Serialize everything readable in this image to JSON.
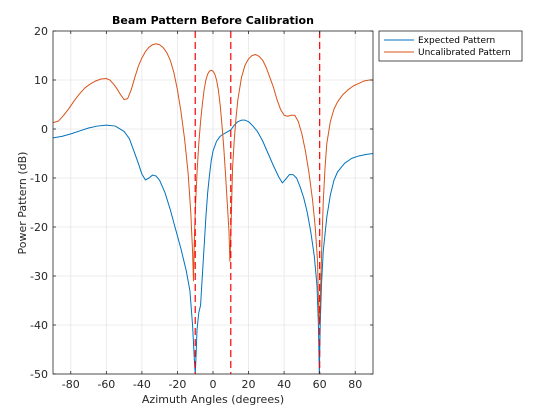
{
  "chart_data": {
    "type": "line",
    "title": "Beam Pattern Before Calibration",
    "xlabel": "Azimuth Angles (degrees)",
    "ylabel": "Power Pattern (dB)",
    "xlim": [
      -90,
      90
    ],
    "ylim": [
      -50,
      20
    ],
    "xticks": [
      -80,
      -60,
      -40,
      -20,
      0,
      20,
      40,
      60,
      80
    ],
    "yticks": [
      20,
      10,
      0,
      -10,
      -20,
      -30,
      -40,
      -50
    ],
    "grid": true,
    "legend_position": "outside-top-right",
    "series": [
      {
        "name": "Expected Pattern",
        "color": "#0072BD",
        "points": [
          [
            -90,
            -1.8
          ],
          [
            -85,
            -1.5
          ],
          [
            -80,
            -1.0
          ],
          [
            -75,
            -0.4
          ],
          [
            -70,
            0.2
          ],
          [
            -65,
            0.6
          ],
          [
            -60,
            0.8
          ],
          [
            -55,
            0.6
          ],
          [
            -50,
            -0.5
          ],
          [
            -47,
            -2.0
          ],
          [
            -45,
            -4.0
          ],
          [
            -42,
            -7.0
          ],
          [
            -40,
            -9.2
          ],
          [
            -38,
            -10.4
          ],
          [
            -36,
            -10.0
          ],
          [
            -34,
            -9.4
          ],
          [
            -32,
            -9.6
          ],
          [
            -30,
            -10.5
          ],
          [
            -27,
            -13.0
          ],
          [
            -24,
            -16.5
          ],
          [
            -21,
            -20.5
          ],
          [
            -18,
            -24.5
          ],
          [
            -15,
            -29.0
          ],
          [
            -13,
            -33.0
          ],
          [
            -11.5,
            -40.0
          ],
          [
            -10.5,
            -47.0
          ],
          [
            -10,
            -50.0
          ],
          [
            -9.5,
            -46.0
          ],
          [
            -9,
            -41.0
          ],
          [
            -8,
            -37.5
          ],
          [
            -7,
            -36.0
          ],
          [
            -6,
            -30.0
          ],
          [
            -5,
            -24.0
          ],
          [
            -4,
            -18.0
          ],
          [
            -3,
            -13.0
          ],
          [
            -2,
            -9.5
          ],
          [
            -1,
            -6.5
          ],
          [
            0,
            -4.5
          ],
          [
            2,
            -2.5
          ],
          [
            4,
            -1.5
          ],
          [
            6,
            -1.0
          ],
          [
            8,
            -0.6
          ],
          [
            10,
            -0.2
          ],
          [
            12,
            0.8
          ],
          [
            14,
            1.5
          ],
          [
            16,
            1.8
          ],
          [
            18,
            1.8
          ],
          [
            20,
            1.5
          ],
          [
            22,
            0.8
          ],
          [
            25,
            -0.5
          ],
          [
            28,
            -2.5
          ],
          [
            31,
            -5.0
          ],
          [
            34,
            -7.5
          ],
          [
            37,
            -9.8
          ],
          [
            39,
            -11.0
          ],
          [
            41,
            -10.2
          ],
          [
            43,
            -9.3
          ],
          [
            45,
            -9.3
          ],
          [
            47,
            -10.0
          ],
          [
            49,
            -11.8
          ],
          [
            51,
            -14.0
          ],
          [
            53,
            -17.0
          ],
          [
            55,
            -21.0
          ],
          [
            57,
            -26.0
          ],
          [
            58.5,
            -32.0
          ],
          [
            59.3,
            -40.0
          ],
          [
            59.8,
            -50.0
          ],
          [
            60.3,
            -40.0
          ],
          [
            61,
            -32.0
          ],
          [
            62,
            -25.0
          ],
          [
            64,
            -18.0
          ],
          [
            66,
            -13.5
          ],
          [
            68,
            -10.5
          ],
          [
            70,
            -8.8
          ],
          [
            74,
            -7.0
          ],
          [
            78,
            -6.0
          ],
          [
            82,
            -5.5
          ],
          [
            86,
            -5.2
          ],
          [
            90,
            -5.0
          ]
        ]
      },
      {
        "name": "Uncalibrated Pattern",
        "color": "#D95319",
        "points": [
          [
            -90,
            1.3
          ],
          [
            -87,
            1.6
          ],
          [
            -84,
            2.8
          ],
          [
            -81,
            4.2
          ],
          [
            -78,
            5.8
          ],
          [
            -75,
            7.2
          ],
          [
            -72,
            8.4
          ],
          [
            -69,
            9.2
          ],
          [
            -66,
            9.8
          ],
          [
            -63,
            10.2
          ],
          [
            -60,
            10.3
          ],
          [
            -58,
            10.0
          ],
          [
            -56,
            9.2
          ],
          [
            -54,
            8.2
          ],
          [
            -52,
            7.0
          ],
          [
            -50,
            6.0
          ],
          [
            -48,
            6.2
          ],
          [
            -46,
            8.0
          ],
          [
            -44,
            10.5
          ],
          [
            -42,
            12.8
          ],
          [
            -40,
            14.5
          ],
          [
            -38,
            15.8
          ],
          [
            -36,
            16.7
          ],
          [
            -34,
            17.2
          ],
          [
            -32,
            17.4
          ],
          [
            -30,
            17.2
          ],
          [
            -28,
            16.6
          ],
          [
            -26,
            15.6
          ],
          [
            -24,
            14.0
          ],
          [
            -22,
            11.5
          ],
          [
            -20,
            8.0
          ],
          [
            -18,
            3.5
          ],
          [
            -16,
            -2.0
          ],
          [
            -14,
            -9.0
          ],
          [
            -12.5,
            -17.0
          ],
          [
            -11.5,
            -25.0
          ],
          [
            -11,
            -31.0
          ],
          [
            -10.6,
            -24.0
          ],
          [
            -10,
            -17.0
          ],
          [
            -9,
            -9.0
          ],
          [
            -8,
            -3.0
          ],
          [
            -7,
            1.5
          ],
          [
            -6,
            5.0
          ],
          [
            -5,
            8.0
          ],
          [
            -4,
            10.0
          ],
          [
            -3,
            11.2
          ],
          [
            -2,
            11.8
          ],
          [
            -1,
            12.0
          ],
          [
            0,
            11.8
          ],
          [
            1,
            11.2
          ],
          [
            2,
            10.0
          ],
          [
            3,
            8.0
          ],
          [
            4,
            5.0
          ],
          [
            5,
            1.0
          ],
          [
            6,
            -3.5
          ],
          [
            7,
            -9.0
          ],
          [
            8,
            -15.0
          ],
          [
            9,
            -21.0
          ],
          [
            9.5,
            -27.0
          ],
          [
            10,
            -22.0
          ],
          [
            10.5,
            -15.0
          ],
          [
            11,
            -8.0
          ],
          [
            12,
            -2.0
          ],
          [
            13,
            2.5
          ],
          [
            14,
            6.0
          ],
          [
            16,
            10.5
          ],
          [
            18,
            13.0
          ],
          [
            20,
            14.3
          ],
          [
            22,
            15.0
          ],
          [
            24,
            15.2
          ],
          [
            26,
            14.8
          ],
          [
            28,
            14.0
          ],
          [
            30,
            12.5
          ],
          [
            32,
            10.5
          ],
          [
            34,
            8.5
          ],
          [
            36,
            6.0
          ],
          [
            38,
            4.0
          ],
          [
            40,
            2.8
          ],
          [
            42,
            2.6
          ],
          [
            44,
            2.8
          ],
          [
            46,
            2.8
          ],
          [
            48,
            1.5
          ],
          [
            50,
            -1.0
          ],
          [
            52,
            -4.5
          ],
          [
            54,
            -9.0
          ],
          [
            56,
            -14.5
          ],
          [
            57.5,
            -20.0
          ],
          [
            58.8,
            -27.0
          ],
          [
            59.5,
            -38.0
          ],
          [
            60,
            -40.0
          ],
          [
            60.5,
            -33.0
          ],
          [
            61.2,
            -24.0
          ],
          [
            62,
            -15.0
          ],
          [
            63,
            -8.0
          ],
          [
            64,
            -3.0
          ],
          [
            66,
            1.5
          ],
          [
            68,
            4.0
          ],
          [
            70,
            5.5
          ],
          [
            73,
            7.0
          ],
          [
            76,
            8.0
          ],
          [
            79,
            8.8
          ],
          [
            82,
            9.3
          ],
          [
            85,
            9.8
          ],
          [
            88,
            10.0
          ],
          [
            90,
            10.0
          ]
        ]
      }
    ],
    "reference_lines": {
      "orientation": "vertical",
      "style": "dashed",
      "color": "#FF0000",
      "x": [
        -10,
        10,
        60
      ]
    }
  }
}
